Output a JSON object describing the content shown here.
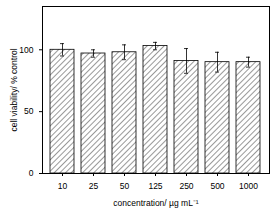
{
  "chart_data": {
    "type": "bar",
    "x_label": "concentration/ µg mL⁻¹",
    "y_label": "cell viability/ % control",
    "categories": [
      "10",
      "25",
      "50",
      "125",
      "250",
      "500",
      "1000"
    ],
    "values": [
      100,
      97,
      98,
      103,
      91,
      90,
      90
    ],
    "errors": [
      5,
      3,
      6,
      3,
      10,
      8,
      4
    ],
    "color": "#000000",
    "ylim": [
      0,
      135
    ],
    "yticks": [
      0,
      50,
      100
    ],
    "grid": false
  }
}
